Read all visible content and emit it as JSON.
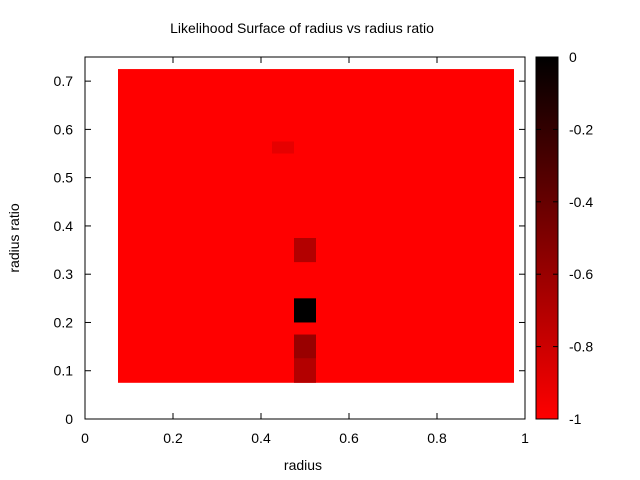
{
  "chart_data": {
    "type": "heatmap",
    "title": "Likelihood Surface of radius vs radius ratio",
    "xlabel": "radius",
    "ylabel": "radius ratio",
    "xlim": [
      0,
      1
    ],
    "ylim": [
      0,
      0.75
    ],
    "x_ticks": [
      "0",
      "0.2",
      "0.4",
      "0.6",
      "0.8",
      "1"
    ],
    "y_ticks": [
      "0",
      "0.1",
      "0.2",
      "0.3",
      "0.4",
      "0.5",
      "0.6",
      "0.7"
    ],
    "surface_extent": {
      "x": [
        0.075,
        0.975
      ],
      "y": [
        0.075,
        0.725
      ]
    },
    "background_value": -1,
    "highlighted_cells": [
      {
        "x": [
          0.425,
          0.475
        ],
        "y": [
          0.55,
          0.575
        ],
        "value": -0.9
      },
      {
        "x": [
          0.475,
          0.525
        ],
        "y": [
          0.325,
          0.375
        ],
        "value": -0.7
      },
      {
        "x": [
          0.475,
          0.525
        ],
        "y": [
          0.2,
          0.25
        ],
        "value": 0
      },
      {
        "x": [
          0.475,
          0.525
        ],
        "y": [
          0.125,
          0.175
        ],
        "value": -0.6
      },
      {
        "x": [
          0.475,
          0.525
        ],
        "y": [
          0.075,
          0.125
        ],
        "value": -0.7
      }
    ],
    "colorbar": {
      "min": -1,
      "max": 0,
      "ticks": [
        "0",
        "-0.2",
        "-0.4",
        "-0.6",
        "-0.8",
        "-1"
      ],
      "color_high": "#000000",
      "color_low": "#ff0000"
    },
    "grid": false,
    "legend": "none"
  }
}
